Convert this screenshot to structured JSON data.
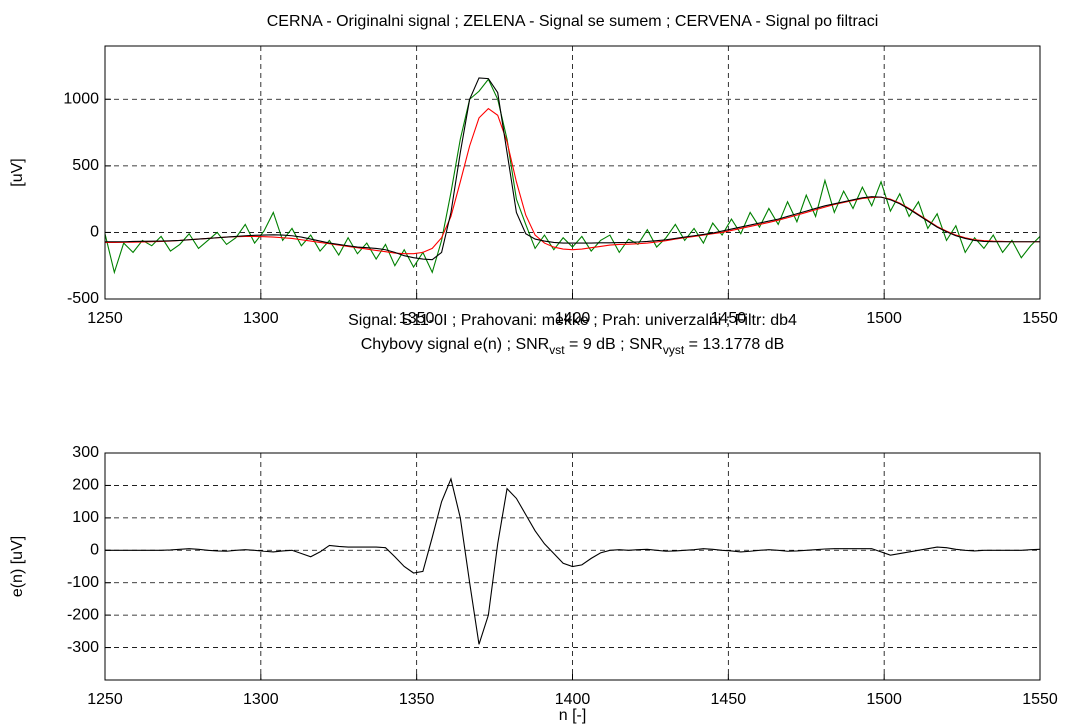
{
  "chart_data": [
    {
      "type": "line",
      "title": "CERNA - Originalni signal ; ZELENA - Signal se sumem ; CERVENA - Signal po filtraci",
      "xlabel": "Signal: S11-0I  ;  Prahovani: mekke  ;  Prah: univerzalni  ;  Filtr: db4",
      "ylabel": "[uV]",
      "xlim": [
        1250,
        1550
      ],
      "xticks": [
        1250,
        1300,
        1350,
        1400,
        1450,
        1500,
        1550
      ],
      "ylim": [
        -500,
        1400
      ],
      "yticks": [
        -500,
        0,
        500,
        1000
      ],
      "grid": true,
      "x": [
        1250,
        1253,
        1256,
        1259,
        1262,
        1265,
        1268,
        1271,
        1274,
        1277,
        1280,
        1283,
        1286,
        1289,
        1292,
        1295,
        1298,
        1301,
        1304,
        1307,
        1310,
        1313,
        1316,
        1319,
        1322,
        1325,
        1328,
        1331,
        1334,
        1337,
        1340,
        1343,
        1346,
        1349,
        1352,
        1355,
        1358,
        1361,
        1364,
        1367,
        1370,
        1373,
        1376,
        1379,
        1382,
        1385,
        1388,
        1391,
        1394,
        1397,
        1400,
        1403,
        1406,
        1409,
        1412,
        1415,
        1418,
        1421,
        1424,
        1427,
        1430,
        1433,
        1436,
        1439,
        1442,
        1445,
        1448,
        1451,
        1454,
        1457,
        1460,
        1463,
        1466,
        1469,
        1472,
        1475,
        1478,
        1481,
        1484,
        1487,
        1490,
        1493,
        1496,
        1499,
        1502,
        1505,
        1508,
        1511,
        1514,
        1517,
        1520,
        1523,
        1526,
        1529,
        1532,
        1535,
        1538,
        1541,
        1544,
        1547,
        1550
      ],
      "series": [
        {
          "color": "#008000",
          "values": [
            -10,
            -300,
            -80,
            -150,
            -60,
            -100,
            -30,
            -140,
            -90,
            -10,
            -120,
            -60,
            0,
            -90,
            -40,
            60,
            -80,
            10,
            150,
            -60,
            30,
            -100,
            -20,
            -140,
            -60,
            -170,
            -40,
            -160,
            -80,
            -200,
            -90,
            -250,
            -130,
            -260,
            -150,
            -300,
            -60,
            300,
            700,
            1000,
            1060,
            1150,
            1000,
            700,
            250,
            60,
            -120,
            -20,
            -130,
            -40,
            -110,
            -30,
            -140,
            -60,
            -20,
            -150,
            -50,
            -90,
            20,
            -110,
            -40,
            60,
            -60,
            30,
            -80,
            70,
            -20,
            100,
            -10,
            150,
            40,
            180,
            60,
            230,
            80,
            280,
            120,
            390,
            150,
            310,
            180,
            340,
            200,
            380,
            160,
            290,
            120,
            230,
            30,
            140,
            -60,
            50,
            -150,
            -40,
            -120,
            -20,
            -150,
            -60,
            -190,
            -100,
            -30
          ]
        },
        {
          "color": "#ff0000",
          "values": [
            -75,
            -75,
            -74,
            -73,
            -72,
            -70,
            -68,
            -65,
            -60,
            -55,
            -50,
            -45,
            -40,
            -35,
            -32,
            -30,
            -30,
            -32,
            -35,
            -40,
            -45,
            -55,
            -65,
            -75,
            -85,
            -95,
            -105,
            -115,
            -125,
            -135,
            -145,
            -155,
            -160,
            -160,
            -150,
            -120,
            -40,
            120,
            380,
            650,
            860,
            930,
            880,
            680,
            380,
            130,
            -20,
            -80,
            -110,
            -125,
            -130,
            -125,
            -115,
            -105,
            -95,
            -90,
            -88,
            -85,
            -80,
            -72,
            -62,
            -50,
            -40,
            -30,
            -20,
            -10,
            0,
            15,
            30,
            45,
            60,
            75,
            92,
            110,
            130,
            150,
            170,
            190,
            210,
            225,
            240,
            255,
            262,
            265,
            250,
            220,
            180,
            135,
            90,
            45,
            10,
            -20,
            -40,
            -55,
            -62,
            -66,
            -68,
            -70,
            -70,
            -70,
            -70
          ]
        },
        {
          "color": "#000000",
          "values": [
            -70,
            -70,
            -70,
            -68,
            -67,
            -66,
            -65,
            -63,
            -60,
            -55,
            -50,
            -45,
            -40,
            -35,
            -30,
            -25,
            -22,
            -20,
            -18,
            -20,
            -25,
            -35,
            -50,
            -65,
            -80,
            -90,
            -100,
            -110,
            -115,
            -120,
            -130,
            -150,
            -175,
            -190,
            -200,
            -205,
            -150,
            150,
            600,
            1000,
            1160,
            1155,
            1050,
            600,
            150,
            -10,
            -50,
            -65,
            -75,
            -80,
            -80,
            -80,
            -80,
            -78,
            -78,
            -76,
            -75,
            -72,
            -68,
            -62,
            -55,
            -45,
            -35,
            -25,
            -15,
            -5,
            10,
            25,
            40,
            55,
            70,
            85,
            100,
            120,
            140,
            160,
            180,
            200,
            215,
            230,
            245,
            260,
            268,
            265,
            245,
            215,
            175,
            130,
            85,
            40,
            5,
            -25,
            -45,
            -60,
            -68,
            -70,
            -70,
            -70,
            -70,
            -70,
            -70
          ]
        }
      ]
    },
    {
      "type": "line",
      "title": [
        {
          "text": "Chybovy signal e(n)  ;  SNR"
        },
        {
          "text": "vst",
          "sub": true
        },
        {
          "text": " = 9 dB  ;  SNR"
        },
        {
          "text": "vyst",
          "sub": true
        },
        {
          "text": " = 13.1778 dB"
        }
      ],
      "xlabel": "n [-]",
      "ylabel": "e(n) [uV]",
      "xlim": [
        1250,
        1550
      ],
      "xticks": [
        1250,
        1300,
        1350,
        1400,
        1450,
        1500,
        1550
      ],
      "ylim": [
        -400,
        300
      ],
      "yticks": [
        -300,
        -200,
        -100,
        0,
        100,
        200,
        300
      ],
      "grid": true,
      "x": [
        1250,
        1253,
        1256,
        1259,
        1262,
        1265,
        1268,
        1271,
        1274,
        1277,
        1280,
        1283,
        1286,
        1289,
        1292,
        1295,
        1298,
        1301,
        1304,
        1307,
        1310,
        1313,
        1316,
        1319,
        1322,
        1325,
        1328,
        1331,
        1334,
        1337,
        1340,
        1343,
        1346,
        1349,
        1352,
        1355,
        1358,
        1361,
        1364,
        1367,
        1370,
        1373,
        1376,
        1379,
        1382,
        1385,
        1388,
        1391,
        1394,
        1397,
        1400,
        1403,
        1406,
        1409,
        1412,
        1415,
        1418,
        1421,
        1424,
        1427,
        1430,
        1433,
        1436,
        1439,
        1442,
        1445,
        1448,
        1451,
        1454,
        1457,
        1460,
        1463,
        1466,
        1469,
        1472,
        1475,
        1478,
        1481,
        1484,
        1487,
        1490,
        1493,
        1496,
        1499,
        1502,
        1505,
        1508,
        1511,
        1514,
        1517,
        1520,
        1523,
        1526,
        1529,
        1532,
        1535,
        1538,
        1541,
        1544,
        1547,
        1550
      ],
      "series": [
        {
          "color": "#000000",
          "values": [
            0,
            0,
            0,
            0,
            0,
            0,
            0,
            1,
            3,
            5,
            3,
            0,
            -2,
            -3,
            0,
            2,
            0,
            -3,
            -5,
            -2,
            0,
            -10,
            -20,
            -5,
            15,
            12,
            10,
            10,
            10,
            10,
            8,
            -20,
            -50,
            -70,
            -65,
            40,
            150,
            220,
            100,
            -100,
            -290,
            -200,
            20,
            190,
            160,
            110,
            60,
            20,
            -10,
            -40,
            -50,
            -45,
            -25,
            -8,
            0,
            2,
            0,
            2,
            3,
            0,
            -3,
            -2,
            0,
            2,
            5,
            3,
            0,
            -2,
            -5,
            -3,
            0,
            2,
            0,
            -3,
            -2,
            0,
            2,
            4,
            5,
            5,
            5,
            5,
            5,
            -5,
            -15,
            -10,
            -5,
            0,
            5,
            10,
            8,
            3,
            0,
            -2,
            0,
            0,
            0,
            0,
            0,
            2,
            3
          ]
        }
      ]
    }
  ]
}
